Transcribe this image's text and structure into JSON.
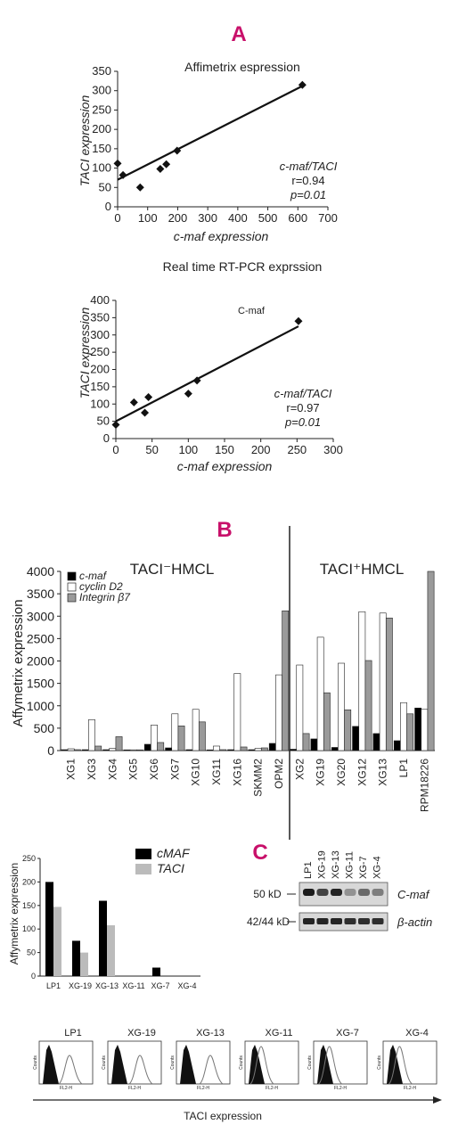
{
  "panel_labels": {
    "a": "A",
    "b": "B",
    "c": "C"
  },
  "chart_data": [
    {
      "id": "affy",
      "type": "scatter",
      "title": "Affimetrix espression",
      "xlabel": "c-maf expression",
      "ylabel": "TACI expression",
      "xlim": [
        0,
        700
      ],
      "ylim": [
        0,
        350
      ],
      "xticks": [
        "0",
        "100",
        "200",
        "300",
        "400",
        "500",
        "600",
        "700"
      ],
      "yticks": [
        "0",
        "50",
        "100",
        "150",
        "200",
        "250",
        "300",
        "350"
      ],
      "points": [
        [
          0,
          112
        ],
        [
          18,
          82
        ],
        [
          75,
          50
        ],
        [
          142,
          98
        ],
        [
          162,
          110
        ],
        [
          198,
          145
        ],
        [
          615,
          315
        ]
      ],
      "fit": [
        [
          0,
          70
        ],
        [
          615,
          312
        ]
      ],
      "stats": {
        "line1": "c-maf/TACI",
        "line2": "r=0.94",
        "line3": "p=0.01"
      }
    },
    {
      "id": "rtpcr",
      "type": "scatter",
      "title": "Real time RT-PCR exprssion",
      "annotation": "C-maf",
      "xlabel": "c-maf expression",
      "ylabel": "TACI expression",
      "xlim": [
        0,
        300
      ],
      "ylim": [
        0,
        400
      ],
      "xticks": [
        "0",
        "50",
        "100",
        "150",
        "200",
        "250",
        "300"
      ],
      "yticks": [
        "0",
        "50",
        "100",
        "150",
        "200",
        "250",
        "300",
        "350",
        "400"
      ],
      "points": [
        [
          0,
          40
        ],
        [
          25,
          105
        ],
        [
          40,
          75
        ],
        [
          45,
          120
        ],
        [
          100,
          130
        ],
        [
          112,
          168
        ],
        [
          252,
          340
        ]
      ],
      "fit": [
        [
          0,
          50
        ],
        [
          252,
          325
        ]
      ],
      "stats": {
        "line1": "c-maf/TACI",
        "line2": "r=0.97",
        "line3": "p=0.01"
      }
    },
    {
      "id": "hmcl",
      "type": "bar",
      "ylabel": "Affymetrix expression",
      "ylim": [
        0,
        4000
      ],
      "yticks": [
        "0",
        "500",
        "1000",
        "1500",
        "2000",
        "2500",
        "3000",
        "3500",
        "4000"
      ],
      "group_neg": "TACI⁻HMCL",
      "group_pos": "TACI⁺HMCL",
      "categories": [
        "XG1",
        "XG3",
        "XG4",
        "XG5",
        "XG6",
        "XG7",
        "XG10",
        "XG11",
        "XG16",
        "SKMM2",
        "OPM2",
        "XG2",
        "XG19",
        "XG20",
        "XG12",
        "XG13",
        "LP1",
        "RPM18226"
      ],
      "series": [
        {
          "name": "c-maf",
          "color": "#000000",
          "values": [
            20,
            20,
            20,
            10,
            140,
            60,
            20,
            10,
            20,
            20,
            160,
            30,
            260,
            70,
            540,
            380,
            220,
            950
          ]
        },
        {
          "name": "cyclin D2",
          "color": "#ffffff",
          "values": [
            40,
            690,
            50,
            10,
            570,
            820,
            920,
            100,
            1720,
            50,
            1690,
            1910,
            2530,
            1950,
            3100,
            3070,
            1070,
            920
          ]
        },
        {
          "name": "Integrin β7",
          "color": "#9a9a9a",
          "values": [
            20,
            100,
            310,
            10,
            180,
            550,
            640,
            20,
            80,
            60,
            3120,
            380,
            1290,
            910,
            2010,
            2960,
            820,
            4000
          ]
        }
      ]
    },
    {
      "id": "cmaf_taci",
      "type": "bar",
      "ylabel": "Affymetrix expression",
      "ylim": [
        0,
        250
      ],
      "yticks": [
        "0",
        "50",
        "100",
        "150",
        "200",
        "250"
      ],
      "categories": [
        "LP1",
        "XG-19",
        "XG-13",
        "XG-11",
        "XG-7",
        "XG-4"
      ],
      "series": [
        {
          "name": "cMAF",
          "color": "#000000",
          "values": [
            200,
            75,
            160,
            0,
            18,
            0
          ]
        },
        {
          "name": "TACI",
          "color": "#bbbbbb",
          "values": [
            147,
            50,
            108,
            0,
            0,
            0
          ]
        }
      ]
    }
  ],
  "western": {
    "lanes": [
      "LP1",
      "XG-19",
      "XG-13",
      "XG-11",
      "XG-7",
      "XG-4"
    ],
    "band1_kd": "50 kD",
    "band1_name": "C-maf",
    "band2_kd": "42/44 kD",
    "band2_name": "β-actin",
    "intensity_cmaf": [
      0.95,
      0.75,
      0.9,
      0.35,
      0.55,
      0.45
    ],
    "intensity_actin": [
      0.9,
      0.9,
      0.9,
      0.85,
      0.85,
      0.85
    ]
  },
  "flow": {
    "cell_lines": [
      "LP1",
      "XG-19",
      "XG-13",
      "XG-11",
      "XG-7",
      "XG-4"
    ],
    "axis_label": "TACI expression",
    "y_axis_label": "Counts",
    "x_axis_label": "FL2-H",
    "shift": [
      0.45,
      0.5,
      0.55,
      0.05,
      0.04,
      0.06
    ]
  }
}
